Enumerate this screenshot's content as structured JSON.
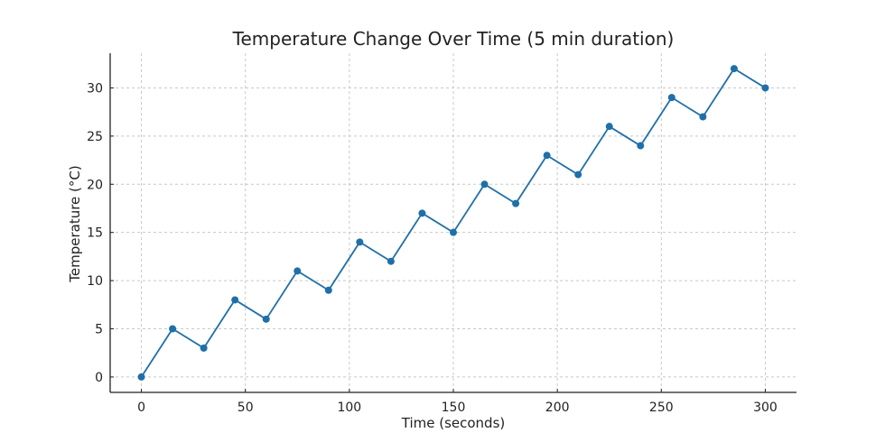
{
  "chart_data": {
    "type": "line",
    "title": "Temperature Change Over Time (5 min duration)",
    "xlabel": "Time (seconds)",
    "ylabel": "Temperature (°C)",
    "xlim": [
      -15,
      315
    ],
    "ylim": [
      -1.6,
      33.6
    ],
    "xticks": [
      0,
      50,
      100,
      150,
      200,
      250,
      300
    ],
    "yticks": [
      0,
      5,
      10,
      15,
      20,
      25,
      30
    ],
    "grid": true,
    "series": [
      {
        "name": "Temperature",
        "color": "#1f6fa8",
        "marker": "circle",
        "x": [
          0,
          15,
          30,
          45,
          60,
          75,
          90,
          105,
          120,
          135,
          150,
          165,
          180,
          195,
          210,
          225,
          240,
          255,
          270,
          285,
          300
        ],
        "values": [
          0,
          5,
          3,
          8,
          6,
          11,
          9,
          14,
          12,
          17,
          15,
          20,
          18,
          23,
          21,
          26,
          24,
          29,
          27,
          32,
          30
        ]
      }
    ]
  }
}
